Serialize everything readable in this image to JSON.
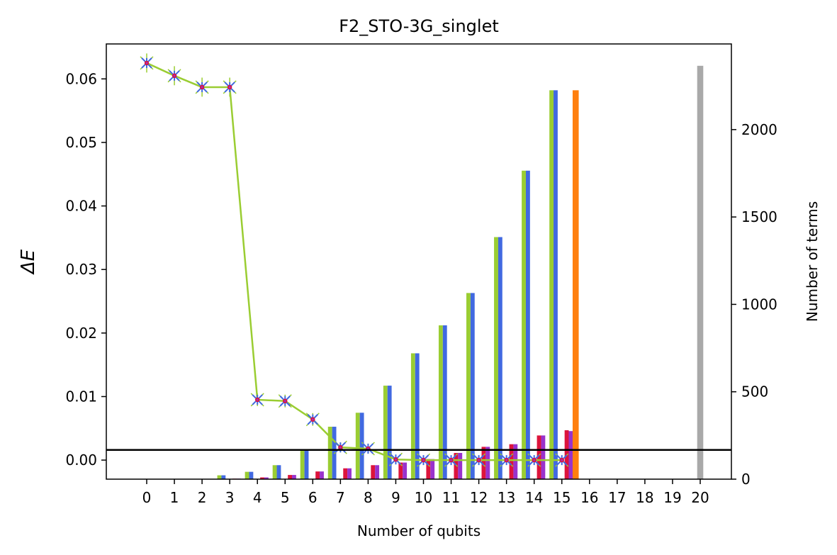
{
  "chart_data": {
    "type": "bar",
    "title": "F2_STO-3G_singlet",
    "xlabel": "Number of qubits",
    "ylabel_left": "ΔE",
    "ylabel_right": "Number of terms",
    "x_ticks": [
      "0",
      "1",
      "2",
      "3",
      "4",
      "5",
      "6",
      "7",
      "8",
      "9",
      "10",
      "11",
      "12",
      "13",
      "14",
      "15",
      "16",
      "17",
      "18",
      "19",
      "20"
    ],
    "left_axis": {
      "ylim": [
        -0.003,
        0.0655
      ],
      "ticks": [
        0.0,
        0.01,
        0.02,
        0.03,
        0.04,
        0.05,
        0.06
      ],
      "tick_labels": [
        "0.00",
        "0.01",
        "0.02",
        "0.03",
        "0.04",
        "0.05",
        "0.06"
      ]
    },
    "right_axis": {
      "ylim": [
        0,
        2490
      ],
      "ticks": [
        0,
        500,
        1000,
        1500,
        2000
      ],
      "tick_labels": [
        "0",
        "500",
        "1000",
        "1500",
        "2000"
      ]
    },
    "bar_series": [
      {
        "color": "#9acd32",
        "offset": -0.375,
        "width": 0.15,
        "values": [
          0,
          0,
          2,
          22,
          42,
          80,
          162,
          300,
          380,
          535,
          720,
          880,
          1065,
          1385,
          1765,
          2225
        ]
      },
      {
        "color": "#4169e1",
        "offset": -0.225,
        "width": 0.15,
        "values": [
          0,
          0,
          2,
          22,
          42,
          80,
          162,
          300,
          380,
          535,
          720,
          880,
          1065,
          1385,
          1765,
          2225
        ]
      },
      {
        "color": "#dc143c",
        "offset": 0.175,
        "width": 0.15,
        "values": [
          0,
          0,
          0,
          3,
          10,
          24,
          44,
          62,
          80,
          95,
          115,
          150,
          185,
          200,
          250,
          280
        ]
      },
      {
        "color": "#9932cc",
        "offset": 0.325,
        "width": 0.15,
        "values": [
          0,
          0,
          0,
          3,
          10,
          24,
          44,
          62,
          80,
          95,
          115,
          150,
          185,
          200,
          250,
          275
        ]
      }
    ],
    "special_bars": [
      {
        "x": 15,
        "offset": 0.5,
        "width": 0.22,
        "value": 2225,
        "color": "#ff7f0e"
      },
      {
        "x": 20,
        "offset": 0.0,
        "width": 0.22,
        "value": 2365,
        "color": "#a9a9a9"
      }
    ],
    "line_series": {
      "color": "#9acd32",
      "x": [
        0,
        1,
        2,
        3,
        4,
        5,
        6,
        7,
        8,
        9,
        10,
        11,
        12,
        13,
        14,
        15
      ],
      "values": [
        0.0625,
        0.0605,
        0.0587,
        0.0587,
        0.0095,
        0.0093,
        0.0064,
        0.002,
        0.0018,
        0.0001,
        0.0,
        0.0,
        0.0,
        0.0,
        0.0,
        0.0
      ],
      "error": [
        0.0015,
        0.0015,
        0.0015,
        0.0015,
        0.001,
        0.001,
        0.001,
        0.0008,
        0.0008,
        0.0005,
        0.0005,
        0.0005,
        0.0005,
        0.0005,
        0.0005,
        0.0005
      ],
      "marker_colors": [
        "#4169e1",
        "#dc143c",
        "#9932cc"
      ]
    },
    "hline": {
      "y": 0.0016,
      "color": "#000000"
    }
  }
}
